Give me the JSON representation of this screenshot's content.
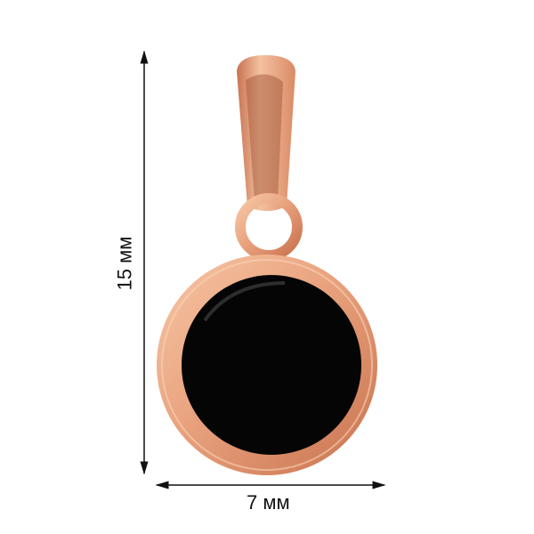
{
  "product": {
    "type": "pendant",
    "metal_color": "#e9a27e",
    "insert_color": "#000000"
  },
  "dimensions": {
    "height_label": "15 мм",
    "width_label": "7 мм"
  }
}
